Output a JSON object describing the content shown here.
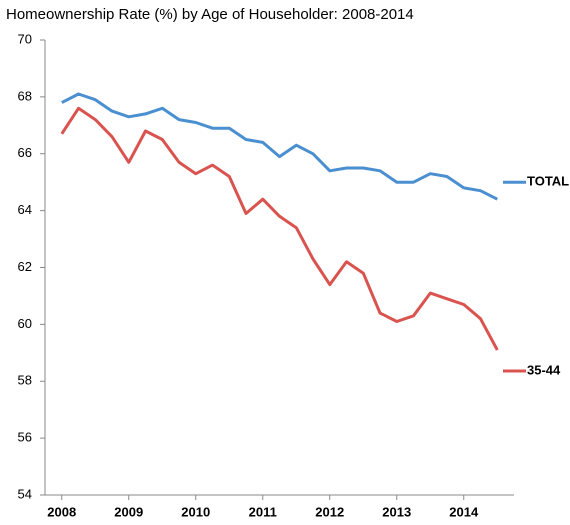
{
  "chart_data": {
    "type": "line",
    "title": "Homeownership Rate (%) by Age of Householder: 2008-2014",
    "x": [
      2008,
      2008.25,
      2008.5,
      2008.75,
      2009,
      2009.25,
      2009.5,
      2009.75,
      2010,
      2010.25,
      2010.5,
      2010.75,
      2011,
      2011.25,
      2011.5,
      2011.75,
      2012,
      2012.25,
      2012.5,
      2012.75,
      2013,
      2013.25,
      2013.5,
      2013.75,
      2014,
      2014.25,
      2014.5
    ],
    "series": [
      {
        "name": "TOTAL",
        "color": "#4a8fd0",
        "values": [
          67.8,
          68.1,
          67.9,
          67.5,
          67.3,
          67.4,
          67.6,
          67.2,
          67.1,
          66.9,
          66.9,
          66.5,
          66.4,
          65.9,
          66.3,
          66.0,
          65.4,
          65.5,
          65.5,
          65.4,
          65.0,
          65.0,
          65.3,
          65.2,
          64.8,
          64.7,
          64.4
        ]
      },
      {
        "name": "35-44",
        "color": "#d9534f",
        "values": [
          66.7,
          67.6,
          67.2,
          66.6,
          65.7,
          66.8,
          66.5,
          65.7,
          65.3,
          65.6,
          65.2,
          63.9,
          64.4,
          63.8,
          63.4,
          62.3,
          61.4,
          62.2,
          61.8,
          60.4,
          60.1,
          60.3,
          61.1,
          60.9,
          60.7,
          60.2,
          59.1
        ]
      }
    ],
    "xlim": [
      2007.75,
      2014.75
    ],
    "xticks": [
      2008,
      2009,
      2010,
      2011,
      2012,
      2013,
      2014
    ],
    "ylim": [
      54,
      70
    ],
    "yticks": [
      54,
      56,
      58,
      60,
      62,
      64,
      66,
      68,
      70
    ],
    "grid": false,
    "legend": "right"
  }
}
